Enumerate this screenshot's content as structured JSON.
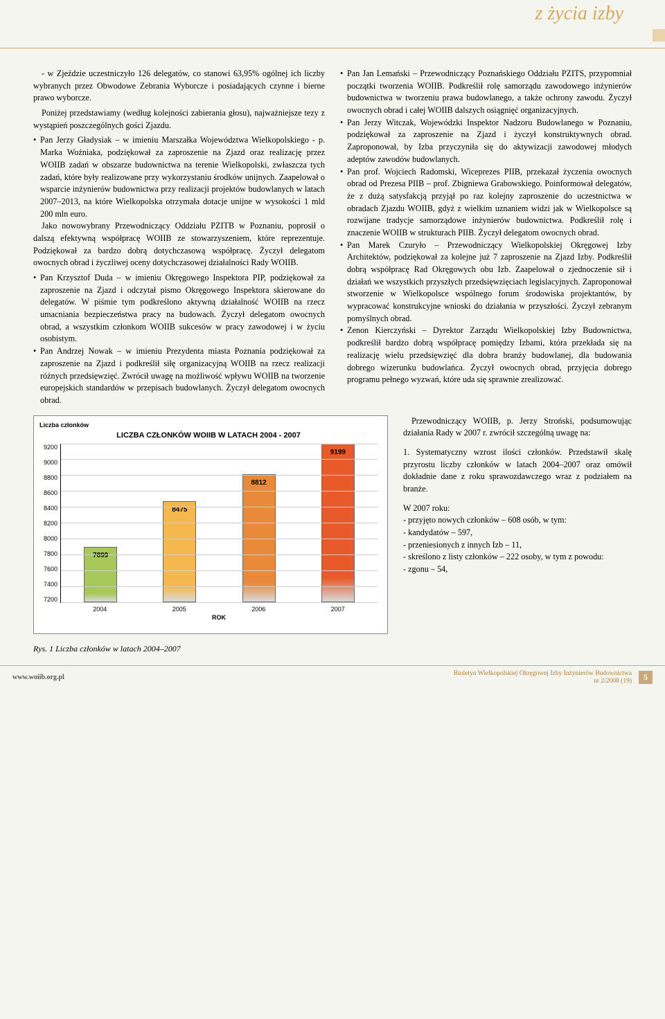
{
  "header": {
    "section_title": "z życia izby"
  },
  "col_left": {
    "p1": "- w Zjeździe uczestniczyło 126 delegatów, co stanowi 63,95% ogólnej ich liczby wybranych przez Obwodowe Zebrania Wyborcze i posiadających czynne i bierne prawo wyborcze.",
    "p2": "Poniżej przedstawiamy (według kolejności zabierania głosu), najważniejsze tezy z wystąpień poszczególnych gości Zjazdu.",
    "b1": "Pan Jerzy Gładysiak – w imieniu Marszałka Województwa Wielkopolskiego - p. Marka Woźniaka, podziękował za zaproszenie na Zjazd oraz realizację przez WOIIB zadań w obszarze budownictwa na terenie Wielkopolski, zwłaszcza tych zadań, które były realizowane przy wykorzystaniu środków unijnych. Zaapelował o wsparcie inżynierów budownictwa przy realizacji projektów budowlanych w latach 2007–2013, na które Wielkopolska otrzymała dotacje unijne w wysokości 1 mld 200 mln euro.",
    "b1b": "Jako nowowybrany Przewodniczący Oddziału PZITB w Poznaniu, poprosił o dalszą efektywną współpracę WOIIB ze stowarzyszeniem, które reprezentuje. Podziękował za bardzo dobrą dotychczasową współpracę. Życzył delegatom owocnych obrad i życzliwej oceny dotychczasowej działalności Rady WOIIB.",
    "b2": "Pan Krzysztof Duda – w imieniu Okręgowego Inspektora PIP, podziękował za zaproszenie na Zjazd i odczytał pismo Okręgowego Inspektora skierowane do delegatów. W piśmie tym podkreślono aktywną działalność WOIIB na rzecz umacniania bezpieczeństwa pracy na budowach. Życzył delegatom owocnych obrad, a wszystkim członkom WOIIB sukcesów w pracy zawodowej i w życiu osobistym.",
    "b3": "Pan Andrzej Nowak – w imieniu Prezydenta miasta Poznania podziękował za zaproszenie na Zjazd i podkreślił siłę organizacyjną WOIIB na rzecz realizacji różnych przedsięwzięć. Zwrócił uwagę na możliwość wpływu WOIIB na tworzenie europejskich standardów w przepisach budowlanych. Życzył delegatom owocnych obrad."
  },
  "col_right": {
    "b4": "Pan Jan Lemański – Przewodniczący Poznańskiego Oddziału PZITS, przypomniał początki tworzenia WOIIB. Podkreślił rolę samorządu zawodowego inżynierów budownictwa w tworzeniu prawa budowlanego, a także ochrony zawodu. Życzył owocnych obrad i całej WOIIB dalszych osiągnięć organizacyjnych.",
    "b5": "Pan Jerzy Witczak, Wojewódzki Inspektor Nadzoru Budowlanego w Poznaniu, podziękował za zaproszenie na Zjazd i życzył konstruktywnych obrad. Zaproponował, by Izba przyczyniła się do aktywizacji zawodowej młodych adeptów zawodów budowlanych.",
    "b6": "Pan prof. Wojciech Radomski, Wiceprezes PIIB, przekazał życzenia owocnych obrad od Prezesa PIIB – prof. Zbigniewa Grabowskiego. Poinformował delegatów, że z dużą satysfakcją przyjął po raz kolejny zaproszenie do uczestnictwa w obradach Zjazdu WOIIB, gdyż z wielkim uznaniem widzi jak w Wielkopolsce są rozwijane tradycje samorządowe inżynierów budownictwa. Podkreślił rolę i znaczenie WOIIB w strukturach PIIB. Życzył delegatom owocnych obrad.",
    "b7": "Pan Marek Czuryło – Przewodniczący Wielkopolskiej Okręgowej Izby Architektów, podziękował za kolejne już 7 zaproszenie na Zjazd Izby. Podkreślił dobrą współpracę Rad Okręgowych obu Izb. Zaapelował o zjednoczenie sił i działań we wszystkich przyszłych przedsięwzięciach legislacyjnych. Zaproponował stworzenie w Wielkopolsce wspólnego forum środowiska projektantów, by wypracować konstrukcyjne wnioski do działania w przyszłości. Życzył zebranym pomyślnych obrad.",
    "b8": "Zenon Kierczyński – Dyrektor Zarządu Wielkopolskiej Izby Budownictwa, podkreślił bardzo dobrą współpracę pomiędzy Izbami, która przekłada się na realizację wielu przedsięwzięć dla dobra branży budowlanej, dla budowania dobrego wizerunku budowlańca. Życzył owocnych obrad, przyjęcia dobrego programu pełnego wyzwań, które uda się sprawnie zrealizować."
  },
  "tail_right": {
    "p1": "Przewodniczący WOIIB, p. Jerzy Stroński, podsumowując działania Rady w 2007 r. zwrócił szczególną uwagę na:",
    "p2": "1.    Systematyczny wzrost ilości członków. Przedstawił skalę przyrostu liczby członków w latach 2004–2007 oraz omówił dokładnie dane z roku sprawozdawczego wraz z podziałem na branże.",
    "p3": "W 2007 roku:",
    "l1": "- przyjęto nowych członków – 608 osób, w tym:",
    "l2": "    - kandydatów – 597,",
    "l3": "    - przeniesionych z innych Izb – 11,",
    "l4": "- skreślono z listy członków – 222 osoby, w tym z powodu:",
    "l5": "    - zgonu – 54,"
  },
  "chart": {
    "title": "LICZBA CZŁONKÓW WOIIB W LATACH 2004 - 2007",
    "y_label": "Liczba członków",
    "x_label": "ROK",
    "y_min": 7200,
    "y_max": 9200,
    "y_ticks": [
      9200,
      9000,
      8800,
      8600,
      8400,
      8200,
      8000,
      7800,
      7600,
      7400,
      7200
    ],
    "categories": [
      "2004",
      "2005",
      "2006",
      "2007"
    ],
    "values": [
      7899,
      8475,
      8812,
      9199
    ],
    "bar_colors": [
      "#a8c85a",
      "#f5b84e",
      "#e88a3a",
      "#e85a2a"
    ],
    "background": "#ffffff",
    "grid_color": "#cccccc"
  },
  "figure_caption": "Rys. 1 Liczba członków w latach 2004–2007",
  "footer": {
    "url": "www.woiib.org.pl",
    "line1": "Biuletyn Wielkopolskiej Okręgowej Izby Inżynierów Budownictwa",
    "line2": "nr 2/2008 (19)",
    "page": "5"
  }
}
